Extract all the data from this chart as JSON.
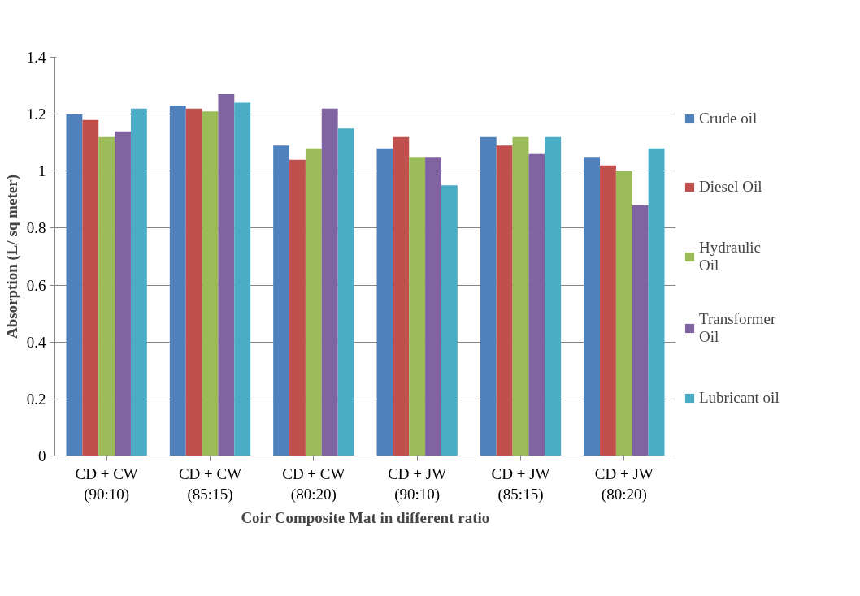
{
  "chart_data": {
    "type": "bar",
    "xlabel": "Coir Composite Mat in different ratio",
    "ylabel": "Absorption (L/ sq meter)",
    "categories": [
      "CD + CW\n(90:10)",
      "CD + CW\n(85:15)",
      "CD + CW\n(80:20)",
      "CD + JW\n(90:10)",
      "CD + JW\n(85:15)",
      "CD + JW\n(80:20)"
    ],
    "series": [
      {
        "name": "Crude oil",
        "color": "#4f81bd",
        "values": [
          1.2,
          1.23,
          1.09,
          1.08,
          1.12,
          1.05
        ]
      },
      {
        "name": "Diesel Oil",
        "color": "#c0504d",
        "values": [
          1.18,
          1.22,
          1.04,
          1.12,
          1.09,
          1.02
        ]
      },
      {
        "name": "Hydraulic\nOil",
        "color": "#9bbb59",
        "values": [
          1.12,
          1.21,
          1.08,
          1.05,
          1.12,
          1.0
        ]
      },
      {
        "name": "Transformer\nOil",
        "color": "#8064a2",
        "values": [
          1.14,
          1.27,
          1.22,
          1.05,
          1.06,
          0.88
        ]
      },
      {
        "name": "Lubricant oil",
        "color": "#4bacc6",
        "values": [
          1.22,
          1.24,
          1.15,
          0.95,
          1.12,
          1.08
        ]
      }
    ],
    "ylim": [
      0,
      1.4
    ],
    "yticks": [
      0,
      0.2,
      0.4,
      0.6,
      0.8,
      1,
      1.2,
      1.4
    ],
    "grid": "y",
    "legend": "right"
  }
}
